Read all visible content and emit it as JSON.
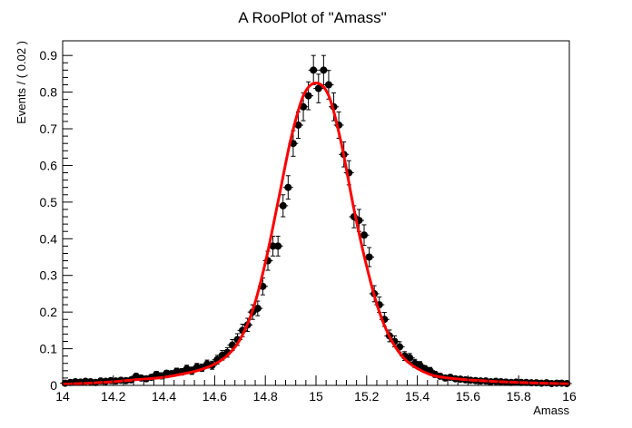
{
  "chart_data": {
    "type": "scatter",
    "title": "A RooPlot of \"Amass\"",
    "xlabel": "Amass",
    "ylabel": "Events / ( 0.02 )",
    "xlim": [
      14,
      16
    ],
    "ylim": [
      0,
      0.94
    ],
    "x_ticks": [
      "14",
      "14.2",
      "14.4",
      "14.6",
      "14.8",
      "15",
      "15.2",
      "15.4",
      "15.6",
      "15.8",
      "16"
    ],
    "y_ticks": [
      "0",
      "0.1",
      "0.2",
      "0.3",
      "0.4",
      "0.5",
      "0.6",
      "0.7",
      "0.8",
      "0.9"
    ],
    "grid": false,
    "series": [
      {
        "kind": "data-points",
        "color": "#000000",
        "x": [
          14.01,
          14.03,
          14.05,
          14.07,
          14.09,
          14.11,
          14.13,
          14.15,
          14.17,
          14.19,
          14.21,
          14.23,
          14.25,
          14.27,
          14.29,
          14.31,
          14.33,
          14.35,
          14.37,
          14.39,
          14.41,
          14.43,
          14.45,
          14.47,
          14.49,
          14.51,
          14.53,
          14.55,
          14.57,
          14.59,
          14.61,
          14.63,
          14.65,
          14.67,
          14.69,
          14.71,
          14.73,
          14.75,
          14.77,
          14.79,
          14.81,
          14.83,
          14.85,
          14.87,
          14.89,
          14.91,
          14.93,
          14.95,
          14.97,
          14.99,
          15.01,
          15.03,
          15.05,
          15.07,
          15.09,
          15.11,
          15.13,
          15.15,
          15.17,
          15.19,
          15.21,
          15.23,
          15.25,
          15.27,
          15.29,
          15.31,
          15.33,
          15.35,
          15.37,
          15.39,
          15.41,
          15.43,
          15.45,
          15.47,
          15.49,
          15.51,
          15.53,
          15.55,
          15.57,
          15.59,
          15.61,
          15.63,
          15.65,
          15.67,
          15.69,
          15.71,
          15.73,
          15.75,
          15.77,
          15.79,
          15.81,
          15.83,
          15.85,
          15.87,
          15.89,
          15.91,
          15.93,
          15.95,
          15.97,
          15.99
        ],
        "y": [
          0.006,
          0.008,
          0.01,
          0.009,
          0.011,
          0.01,
          0.008,
          0.012,
          0.011,
          0.013,
          0.012,
          0.014,
          0.013,
          0.015,
          0.025,
          0.02,
          0.018,
          0.022,
          0.03,
          0.026,
          0.033,
          0.032,
          0.038,
          0.037,
          0.045,
          0.04,
          0.05,
          0.048,
          0.058,
          0.055,
          0.07,
          0.082,
          0.09,
          0.11,
          0.125,
          0.15,
          0.165,
          0.2,
          0.21,
          0.27,
          0.34,
          0.38,
          0.38,
          0.49,
          0.54,
          0.66,
          0.71,
          0.76,
          0.79,
          0.86,
          0.81,
          0.86,
          0.82,
          0.76,
          0.71,
          0.63,
          0.58,
          0.46,
          0.45,
          0.41,
          0.35,
          0.25,
          0.22,
          0.18,
          0.135,
          0.12,
          0.105,
          0.08,
          0.075,
          0.06,
          0.055,
          0.045,
          0.04,
          0.03,
          0.025,
          0.02,
          0.022,
          0.018,
          0.017,
          0.015,
          0.014,
          0.013,
          0.012,
          0.012,
          0.01,
          0.011,
          0.01,
          0.009,
          0.008,
          0.009,
          0.008,
          0.008,
          0.007,
          0.007,
          0.006,
          0.007,
          0.005,
          0.006,
          0.006,
          0.005
        ],
        "yerr": [
          0.006,
          0.006,
          0.006,
          0.006,
          0.006,
          0.006,
          0.006,
          0.006,
          0.006,
          0.006,
          0.006,
          0.006,
          0.006,
          0.006,
          0.007,
          0.007,
          0.007,
          0.007,
          0.008,
          0.008,
          0.008,
          0.008,
          0.009,
          0.009,
          0.01,
          0.01,
          0.01,
          0.01,
          0.011,
          0.011,
          0.012,
          0.013,
          0.013,
          0.015,
          0.016,
          0.017,
          0.018,
          0.02,
          0.02,
          0.023,
          0.026,
          0.027,
          0.027,
          0.03,
          0.032,
          0.035,
          0.036,
          0.038,
          0.038,
          0.04,
          0.039,
          0.04,
          0.039,
          0.038,
          0.036,
          0.034,
          0.033,
          0.03,
          0.03,
          0.028,
          0.026,
          0.022,
          0.021,
          0.019,
          0.016,
          0.015,
          0.014,
          0.012,
          0.012,
          0.011,
          0.01,
          0.009,
          0.009,
          0.008,
          0.007,
          0.006,
          0.007,
          0.006,
          0.006,
          0.006,
          0.006,
          0.006,
          0.006,
          0.006,
          0.006,
          0.006,
          0.006,
          0.006,
          0.006,
          0.006,
          0.006,
          0.006,
          0.006,
          0.006,
          0.006,
          0.006,
          0.006,
          0.006,
          0.006,
          0.006
        ]
      },
      {
        "kind": "fit-curve",
        "color": "#ff0000",
        "x": [
          14.0,
          14.1,
          14.2,
          14.3,
          14.4,
          14.5,
          14.55,
          14.6,
          14.65,
          14.7,
          14.75,
          14.8,
          14.85,
          14.9,
          14.95,
          15.0,
          15.05,
          15.1,
          15.15,
          15.2,
          15.25,
          15.3,
          15.35,
          15.4,
          15.45,
          15.5,
          15.6,
          15.7,
          15.8,
          15.9,
          16.0
        ],
        "y": [
          0.003,
          0.006,
          0.01,
          0.016,
          0.022,
          0.035,
          0.044,
          0.058,
          0.082,
          0.125,
          0.205,
          0.335,
          0.5,
          0.67,
          0.79,
          0.825,
          0.79,
          0.66,
          0.48,
          0.325,
          0.2,
          0.12,
          0.072,
          0.046,
          0.03,
          0.022,
          0.015,
          0.011,
          0.008,
          0.006,
          0.004
        ]
      }
    ]
  }
}
